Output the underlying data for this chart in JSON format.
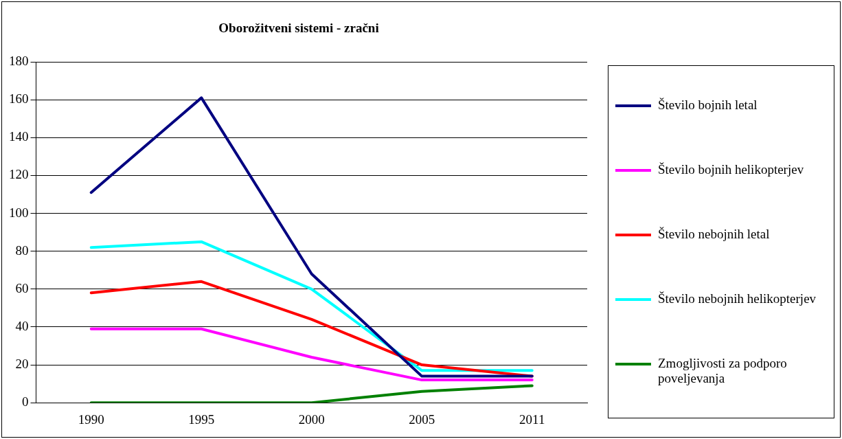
{
  "chart_data": {
    "type": "line",
    "title": "Oborožitveni sistemi - zračni",
    "categories": [
      "1990",
      "1995",
      "2000",
      "2005",
      "2011"
    ],
    "series": [
      {
        "name": "Število bojnih letal",
        "color": "#000080",
        "values": [
          111,
          161,
          68,
          14,
          14
        ]
      },
      {
        "name": "Število bojnih helikopterjev",
        "color": "#ff00ff",
        "values": [
          39,
          39,
          24,
          12,
          12
        ]
      },
      {
        "name": "Število nebojnih letal",
        "color": "#ff0000",
        "values": [
          58,
          64,
          44,
          20,
          14
        ]
      },
      {
        "name": "Število nebojnih helikopterjev",
        "color": "#00ffff",
        "values": [
          82,
          85,
          60,
          17,
          17
        ]
      },
      {
        "name": "Zmogljivosti za podporo poveljevanja",
        "color": "#008000",
        "values": [
          0,
          0,
          0,
          6,
          9
        ]
      }
    ],
    "ylim": [
      0,
      180
    ],
    "yticks": [
      0,
      20,
      40,
      60,
      80,
      100,
      120,
      140,
      160,
      180
    ],
    "grid": "y",
    "legend": "right",
    "marker": "none",
    "line_style": "solid"
  }
}
